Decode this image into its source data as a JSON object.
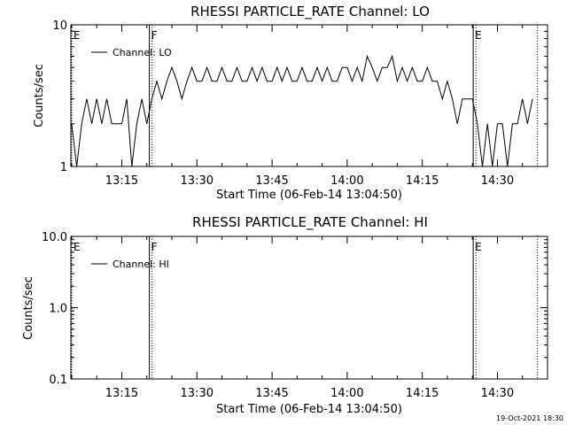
{
  "chart_data": [
    {
      "type": "line",
      "title": "RHESSI PARTICLE_RATE Channel: LO",
      "xlabel": "Start Time (06-Feb-14 13:04:50)",
      "ylabel": "Counts/sec",
      "y_scale": "log",
      "ylim": [
        1,
        10
      ],
      "xlim": [
        "13:04:50",
        "14:40:00"
      ],
      "ytick_labels": [
        "1",
        "10"
      ],
      "xtick_labels": [
        "13:15",
        "13:30",
        "13:45",
        "14:00",
        "14:15",
        "14:30"
      ],
      "legend": {
        "label": "Channel: LO",
        "placement": "top-left"
      },
      "markers": [
        {
          "label": "E",
          "time": "13:04:50",
          "style": "dotted"
        },
        {
          "label": "F",
          "time": "13:20:30",
          "style": "solid"
        },
        {
          "label": "E",
          "time": "14:25:10",
          "style": "solid"
        },
        {
          "label": "",
          "time": "14:38:00",
          "style": "dotted"
        }
      ],
      "series": [
        {
          "name": "Channel: LO",
          "x": [
            "13:05",
            "13:06",
            "13:07",
            "13:08",
            "13:09",
            "13:10",
            "13:11",
            "13:12",
            "13:13",
            "13:14",
            "13:15",
            "13:16",
            "13:17",
            "13:18",
            "13:19",
            "13:20",
            "13:21",
            "13:22",
            "13:23",
            "13:24",
            "13:25",
            "13:26",
            "13:27",
            "13:28",
            "13:29",
            "13:30",
            "13:31",
            "13:32",
            "13:33",
            "13:34",
            "13:35",
            "13:36",
            "13:37",
            "13:38",
            "13:39",
            "13:40",
            "13:41",
            "13:42",
            "13:43",
            "13:44",
            "13:45",
            "13:46",
            "13:47",
            "13:48",
            "13:49",
            "13:50",
            "13:51",
            "13:52",
            "13:53",
            "13:54",
            "13:55",
            "13:56",
            "13:57",
            "13:58",
            "13:59",
            "14:00",
            "14:01",
            "14:02",
            "14:03",
            "14:04",
            "14:05",
            "14:06",
            "14:07",
            "14:08",
            "14:09",
            "14:10",
            "14:11",
            "14:12",
            "14:13",
            "14:14",
            "14:15",
            "14:16",
            "14:17",
            "14:18",
            "14:19",
            "14:20",
            "14:21",
            "14:22",
            "14:23",
            "14:24",
            "14:25",
            "14:26",
            "14:27",
            "14:28",
            "14:29",
            "14:30",
            "14:31",
            "14:32",
            "14:33",
            "14:34",
            "14:35",
            "14:36",
            "14:37"
          ],
          "values": [
            2,
            1,
            2,
            3,
            2,
            3,
            2,
            3,
            2,
            2,
            2,
            3,
            1,
            2,
            3,
            2,
            3,
            4,
            3,
            4,
            5,
            4,
            3,
            4,
            5,
            4,
            4,
            5,
            4,
            4,
            5,
            4,
            4,
            5,
            4,
            4,
            5,
            4,
            5,
            4,
            4,
            5,
            4,
            5,
            4,
            4,
            5,
            4,
            4,
            5,
            4,
            5,
            4,
            4,
            5,
            5,
            4,
            5,
            4,
            6,
            5,
            4,
            5,
            5,
            6,
            4,
            5,
            4,
            5,
            4,
            4,
            5,
            4,
            4,
            3,
            4,
            3,
            2,
            3,
            3,
            3,
            2,
            1,
            2,
            1,
            2,
            2,
            1,
            2,
            2,
            3,
            2,
            3
          ]
        }
      ]
    },
    {
      "type": "line",
      "title": "RHESSI PARTICLE_RATE Channel: HI",
      "xlabel": "Start Time (06-Feb-14 13:04:50)",
      "ylabel": "Counts/sec",
      "y_scale": "log",
      "ylim": [
        0.1,
        10
      ],
      "xlim": [
        "13:04:50",
        "14:40:00"
      ],
      "ytick_labels": [
        "0.1",
        "1.0",
        "10.0"
      ],
      "xtick_labels": [
        "13:15",
        "13:30",
        "13:45",
        "14:00",
        "14:15",
        "14:30"
      ],
      "legend": {
        "label": "Channel: HI",
        "placement": "top-left"
      },
      "markers": [
        {
          "label": "E",
          "time": "13:04:50",
          "style": "dotted"
        },
        {
          "label": "F",
          "time": "13:20:30",
          "style": "solid"
        },
        {
          "label": "E",
          "time": "14:25:10",
          "style": "solid"
        },
        {
          "label": "",
          "time": "14:38:00",
          "style": "dotted"
        }
      ],
      "series": [
        {
          "name": "Channel: HI",
          "x": [],
          "values": []
        }
      ]
    }
  ],
  "footer": {
    "timestamp": "19-Oct-2021 18:30"
  }
}
